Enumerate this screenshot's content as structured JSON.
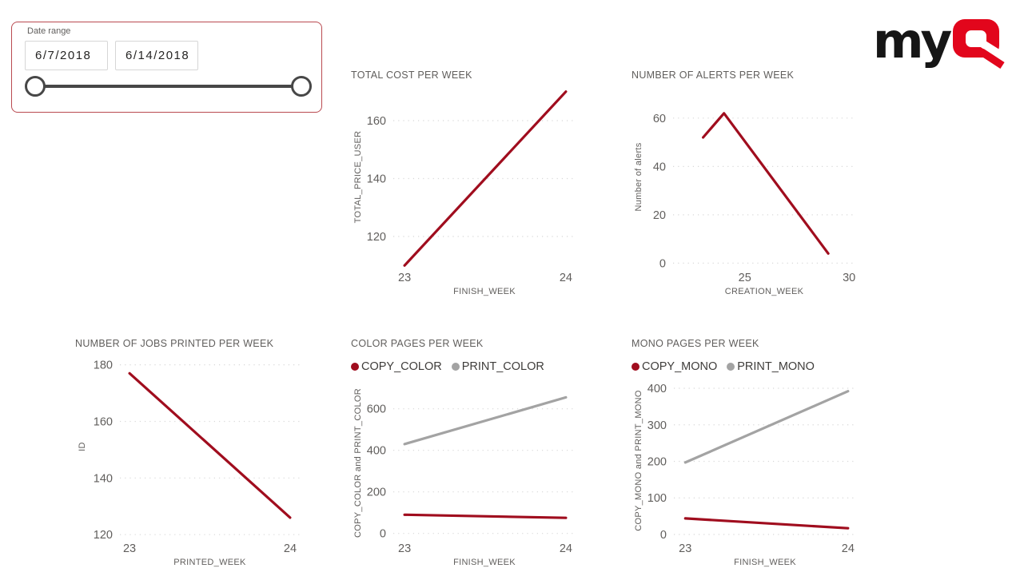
{
  "slicer": {
    "label": "Date range",
    "start_date": "6/7/2018",
    "end_date": "6/14/2018"
  },
  "logo": {
    "my": "my",
    "q": "Q",
    "color_black": "#161616",
    "color_red": "#e2061c"
  },
  "colors": {
    "series_red": "#a00d1e",
    "series_gray": "#a3a3a3",
    "gridline": "#d8d8d8",
    "title_text": "#605e5c",
    "tick_text": "#605e5c",
    "legend_text": "#3f3d3b",
    "slicer_border": "#b94a50",
    "slider": "#474747"
  },
  "chart_data": [
    {
      "type": "line",
      "title": "TOTAL COST PER WEEK",
      "xlabel": "FINISH_WEEK",
      "ylabel": "TOTAL_PRICE_USER",
      "xlim": [
        22.93,
        24.06
      ],
      "ylim": [
        109.8,
        171.3
      ],
      "xticks": [
        23,
        24
      ],
      "yticks": [
        120,
        140,
        160
      ],
      "grid": true,
      "legend": [],
      "series": [
        {
          "name": "TOTAL_PRICE_USER",
          "color": "red",
          "points": [
            [
              23,
              110
            ],
            [
              24,
              170
            ]
          ]
        }
      ]
    },
    {
      "type": "line",
      "title": "NUMBER OF ALERTS PER WEEK",
      "xlabel": "CREATION_WEEK",
      "ylabel": "Number of alerts",
      "xlim": [
        21.56,
        30.3
      ],
      "ylim": [
        -1.2,
        72.5
      ],
      "xticks": [
        25,
        30
      ],
      "yticks": [
        0,
        20,
        40,
        60
      ],
      "grid": true,
      "legend": [],
      "series": [
        {
          "name": "Number of alerts",
          "color": "red",
          "points": [
            [
              23,
              52
            ],
            [
              24,
              62
            ],
            [
              29,
              4
            ]
          ]
        }
      ]
    },
    {
      "type": "line",
      "title": "NUMBER OF JOBS PRINTED PER WEEK",
      "xlabel": "PRINTED_WEEK",
      "ylabel": "ID",
      "xlim": [
        22.94,
        24.06
      ],
      "ylim": [
        119.2,
        183.0
      ],
      "xticks": [
        23,
        24
      ],
      "yticks": [
        120,
        140,
        160,
        180
      ],
      "grid": true,
      "legend": [],
      "series": [
        {
          "name": "ID",
          "color": "red",
          "points": [
            [
              23,
              177
            ],
            [
              24,
              126
            ]
          ]
        }
      ]
    },
    {
      "type": "line",
      "title": "COLOR PAGES PER WEEK",
      "xlabel": "FINISH_WEEK",
      "ylabel": "COPY_COLOR and PRINT_COLOR",
      "xlim": [
        22.93,
        24.06
      ],
      "ylim": [
        -16.5,
        695
      ],
      "xticks": [
        23,
        24
      ],
      "yticks": [
        0,
        200,
        400,
        600
      ],
      "grid": true,
      "legend": [
        {
          "name": "COPY_COLOR",
          "color": "red"
        },
        {
          "name": "PRINT_COLOR",
          "color": "gray"
        }
      ],
      "series": [
        {
          "name": "COPY_COLOR",
          "color": "red",
          "points": [
            [
              23,
              90
            ],
            [
              24,
              75
            ]
          ]
        },
        {
          "name": "PRINT_COLOR",
          "color": "gray",
          "points": [
            [
              23,
              430
            ],
            [
              24,
              655
            ]
          ]
        }
      ]
    },
    {
      "type": "line",
      "title": "MONO PAGES PER WEEK",
      "xlabel": "FINISH_WEEK",
      "ylabel": "COPY_MONO and PRINT_MONO",
      "xlim": [
        22.93,
        24.05
      ],
      "ylim": [
        -6.6,
        411
      ],
      "xticks": [
        23,
        24
      ],
      "yticks": [
        0,
        100,
        200,
        300,
        400
      ],
      "grid": true,
      "legend": [
        {
          "name": "COPY_MONO",
          "color": "red"
        },
        {
          "name": "PRINT_MONO",
          "color": "gray"
        }
      ],
      "series": [
        {
          "name": "COPY_MONO",
          "color": "red",
          "points": [
            [
              23,
              44
            ],
            [
              24,
              17
            ]
          ]
        },
        {
          "name": "PRINT_MONO",
          "color": "gray",
          "points": [
            [
              23,
              197
            ],
            [
              24,
              392
            ]
          ]
        }
      ]
    }
  ]
}
